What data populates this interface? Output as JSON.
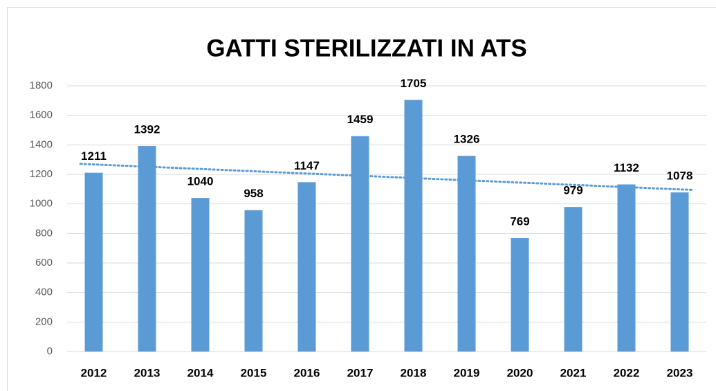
{
  "chart_data": {
    "type": "bar",
    "title": "GATTI STERILIZZATI IN ATS",
    "categories": [
      "2012",
      "2013",
      "2014",
      "2015",
      "2016",
      "2017",
      "2018",
      "2019",
      "2020",
      "2021",
      "2022",
      "2023"
    ],
    "values": [
      1211,
      1392,
      1040,
      958,
      1147,
      1459,
      1705,
      1326,
      769,
      979,
      1132,
      1078
    ],
    "color": "#5b9bd5",
    "ylim": [
      0,
      1800
    ],
    "yticks": [
      0,
      200,
      400,
      600,
      800,
      1000,
      1200,
      1400,
      1600,
      1800
    ],
    "grid": true,
    "trendline": "linear"
  }
}
